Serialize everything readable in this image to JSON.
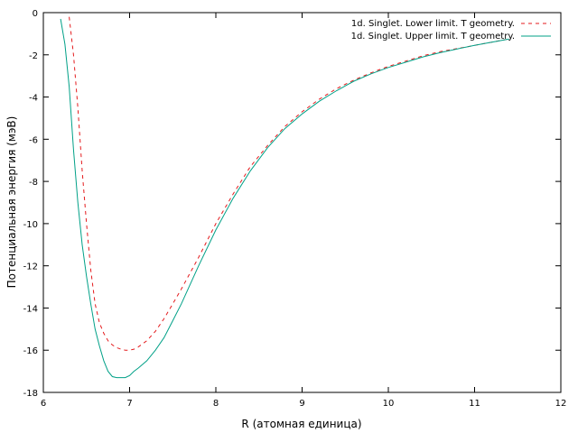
{
  "chart_data": {
    "type": "line",
    "title": "",
    "xlabel": "R (атомная единица)",
    "ylabel": "Потенциальная энергия (мэВ)",
    "xlim": [
      6,
      12
    ],
    "ylim": [
      -18,
      0
    ],
    "xticks": [
      6,
      7,
      8,
      9,
      10,
      11,
      12
    ],
    "yticks": [
      0,
      -2,
      -4,
      -6,
      -8,
      -10,
      -12,
      -14,
      -16,
      -18
    ],
    "grid": false,
    "legend_position": "top-right",
    "series": [
      {
        "name": "1d. Singlet. Lower limit. T geometry.",
        "color": "#e41a1c",
        "style": "dashed",
        "x": [
          6.3,
          6.35,
          6.4,
          6.45,
          6.5,
          6.55,
          6.6,
          6.65,
          6.7,
          6.75,
          6.8,
          6.85,
          6.9,
          6.95,
          7.0,
          7.05,
          7.1,
          7.2,
          7.3,
          7.4,
          7.5,
          7.6,
          7.8,
          8.0,
          8.2,
          8.4,
          8.6,
          8.8,
          9.0,
          9.2,
          9.4,
          9.6,
          9.8,
          10.0,
          10.2,
          10.4,
          10.6,
          10.8,
          11.0,
          11.2,
          11.4
        ],
        "y": [
          -0.2,
          -2.0,
          -4.5,
          -7.5,
          -10.0,
          -12.2,
          -13.8,
          -14.7,
          -15.2,
          -15.55,
          -15.75,
          -15.88,
          -15.95,
          -16.0,
          -16.0,
          -15.95,
          -15.85,
          -15.55,
          -15.1,
          -14.5,
          -13.8,
          -13.1,
          -11.6,
          -10.0,
          -8.6,
          -7.3,
          -6.3,
          -5.4,
          -4.7,
          -4.1,
          -3.6,
          -3.2,
          -2.85,
          -2.55,
          -2.3,
          -2.05,
          -1.85,
          -1.7,
          -1.55,
          -1.4,
          -1.25
        ]
      },
      {
        "name": "1d. Singlet. Upper limit. T geometry.",
        "color": "#00a087",
        "style": "solid",
        "x": [
          6.2,
          6.25,
          6.3,
          6.35,
          6.4,
          6.45,
          6.5,
          6.55,
          6.6,
          6.65,
          6.7,
          6.75,
          6.8,
          6.85,
          6.9,
          6.95,
          7.0,
          7.05,
          7.1,
          7.2,
          7.3,
          7.4,
          7.5,
          7.6,
          7.8,
          8.0,
          8.2,
          8.4,
          8.6,
          8.8,
          9.0,
          9.2,
          9.4,
          9.6,
          9.8,
          10.0,
          10.2,
          10.4,
          10.6,
          10.8,
          11.0,
          11.2,
          11.4
        ],
        "y": [
          -0.3,
          -1.5,
          -3.5,
          -6.5,
          -9.0,
          -11.0,
          -12.5,
          -13.8,
          -15.0,
          -15.8,
          -16.5,
          -17.0,
          -17.25,
          -17.3,
          -17.3,
          -17.3,
          -17.2,
          -17.0,
          -16.85,
          -16.5,
          -16.0,
          -15.4,
          -14.6,
          -13.8,
          -12.0,
          -10.3,
          -8.8,
          -7.5,
          -6.4,
          -5.5,
          -4.8,
          -4.2,
          -3.7,
          -3.25,
          -2.9,
          -2.6,
          -2.35,
          -2.1,
          -1.9,
          -1.72,
          -1.55,
          -1.4,
          -1.25
        ]
      }
    ]
  }
}
